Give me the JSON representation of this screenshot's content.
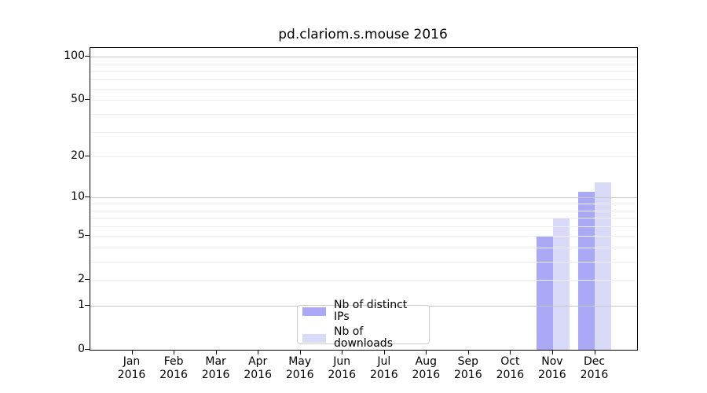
{
  "chart_data": {
    "type": "bar",
    "title": "pd.clariom.s.mouse 2016",
    "year": "2016",
    "categories": [
      "Jan",
      "Feb",
      "Mar",
      "Apr",
      "May",
      "Jun",
      "Jul",
      "Aug",
      "Sep",
      "Oct",
      "Nov",
      "Dec"
    ],
    "series": [
      {
        "name": "Nb of distinct IPs",
        "color": "#a9a9f5",
        "values": [
          0,
          0,
          0,
          0,
          0,
          0,
          0,
          0,
          0,
          0,
          5,
          11
        ]
      },
      {
        "name": "Nb of downloads",
        "color": "#d9d9f8",
        "values": [
          0,
          0,
          0,
          0,
          0,
          0,
          0,
          0,
          0,
          0,
          7,
          13
        ]
      }
    ],
    "xlabel": "",
    "ylabel": "",
    "y_ticks": [
      0,
      1,
      2,
      5,
      10,
      20,
      50,
      100
    ],
    "y_scale": "log1p",
    "ylim": [
      0,
      115
    ],
    "grid": "horizontal",
    "grid_major": [
      1,
      10,
      100
    ],
    "grid_minor": [
      2,
      3,
      4,
      5,
      6,
      7,
      8,
      9,
      20,
      30,
      40,
      50,
      60,
      70,
      80,
      90
    ],
    "legend_position": "lower-center-inside"
  }
}
